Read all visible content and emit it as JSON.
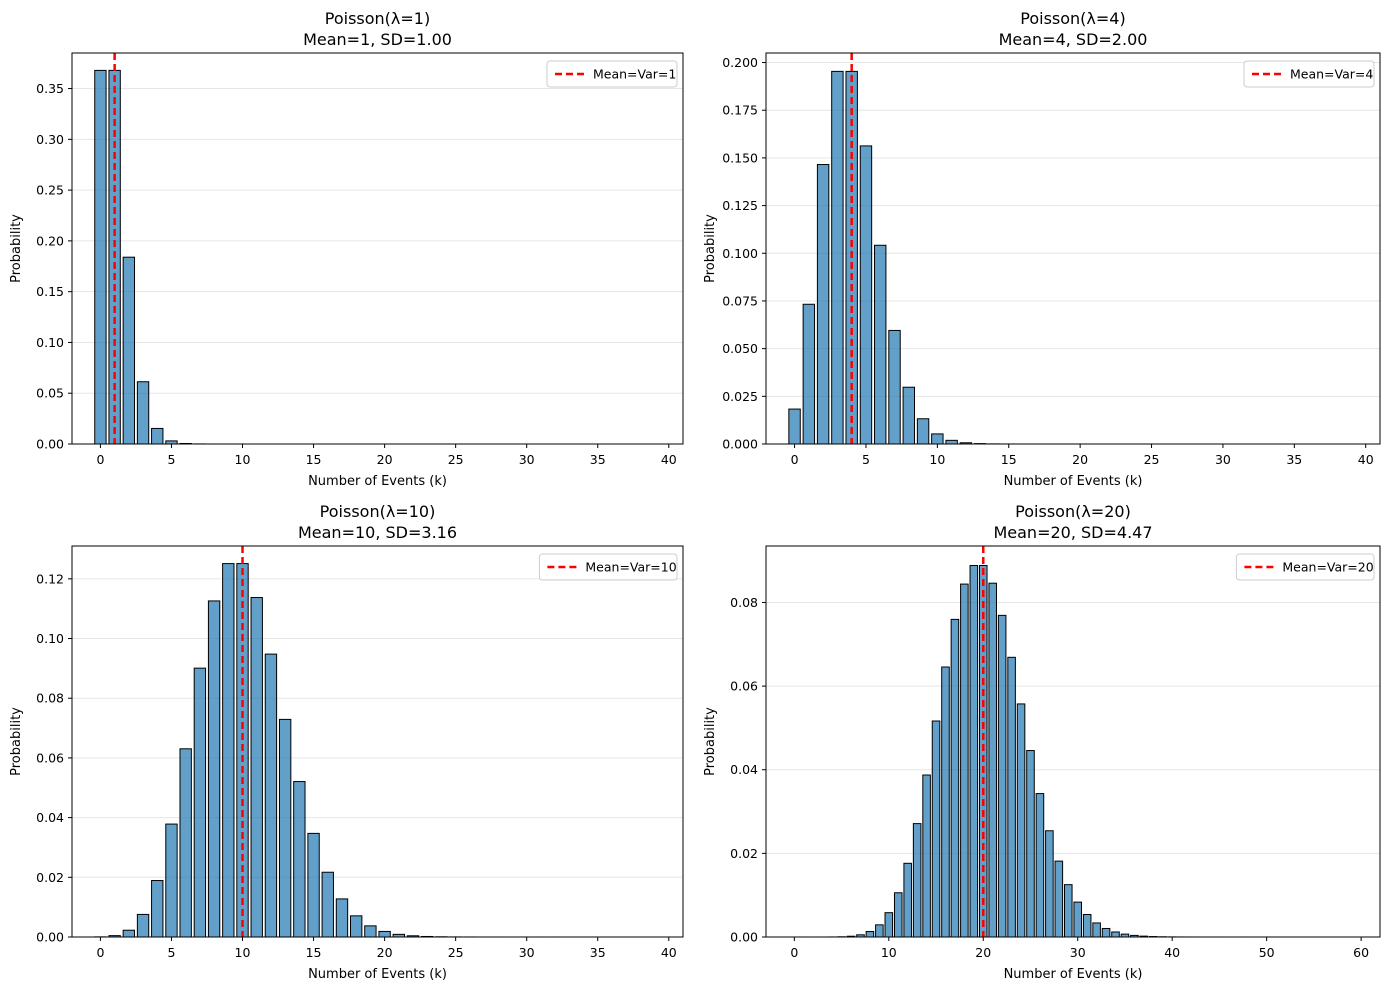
{
  "chart_data": [
    {
      "type": "bar",
      "lambda": 1,
      "title": "Poisson(λ=1)",
      "subtitle": "Mean=1, SD=1.00",
      "xlabel": "Number of Events (k)",
      "ylabel": "Probability",
      "xlim": [
        -2,
        41
      ],
      "ylim": [
        0,
        0.385
      ],
      "xticks": [
        0,
        5,
        10,
        15,
        20,
        25,
        30,
        35,
        40
      ],
      "yticks": [
        0.0,
        0.05,
        0.1,
        0.15,
        0.2,
        0.25,
        0.3,
        0.35
      ],
      "ytick_decimals": 2,
      "k_max": 40,
      "mean_line": 1,
      "legend": "Mean=Var=1",
      "legend_position": "top-right",
      "grid": "y"
    },
    {
      "type": "bar",
      "lambda": 4,
      "title": "Poisson(λ=4)",
      "subtitle": "Mean=4, SD=2.00",
      "xlabel": "Number of Events (k)",
      "ylabel": "Probability",
      "xlim": [
        -2,
        41
      ],
      "ylim": [
        0,
        0.205
      ],
      "xticks": [
        0,
        5,
        10,
        15,
        20,
        25,
        30,
        35,
        40
      ],
      "yticks": [
        0.0,
        0.025,
        0.05,
        0.075,
        0.1,
        0.125,
        0.15,
        0.175,
        0.2
      ],
      "ytick_decimals": 3,
      "k_max": 40,
      "mean_line": 4,
      "legend": "Mean=Var=4",
      "legend_position": "top-right",
      "grid": "y"
    },
    {
      "type": "bar",
      "lambda": 10,
      "title": "Poisson(λ=10)",
      "subtitle": "Mean=10, SD=3.16",
      "xlabel": "Number of Events (k)",
      "ylabel": "Probability",
      "xlim": [
        -2,
        41
      ],
      "ylim": [
        0,
        0.131
      ],
      "xticks": [
        0,
        5,
        10,
        15,
        20,
        25,
        30,
        35,
        40
      ],
      "yticks": [
        0.0,
        0.02,
        0.04,
        0.06,
        0.08,
        0.1,
        0.12
      ],
      "ytick_decimals": 2,
      "k_max": 40,
      "mean_line": 10,
      "legend": "Mean=Var=10",
      "legend_position": "top-right",
      "grid": "y"
    },
    {
      "type": "bar",
      "lambda": 20,
      "title": "Poisson(λ=20)",
      "subtitle": "Mean=20, SD=4.47",
      "xlabel": "Number of Events (k)",
      "ylabel": "Probability",
      "xlim": [
        -3,
        62
      ],
      "ylim": [
        0,
        0.0935
      ],
      "xticks": [
        0,
        10,
        20,
        30,
        40,
        50,
        60
      ],
      "yticks": [
        0.0,
        0.02,
        0.04,
        0.06,
        0.08
      ],
      "ytick_decimals": 2,
      "k_max": 60,
      "mean_line": 20,
      "legend": "Mean=Var=20",
      "legend_position": "top-right",
      "grid": "y"
    }
  ],
  "colors": {
    "bar_fill": "#1f77b4",
    "bar_edge": "#000000",
    "mean_line": "#ff0000",
    "grid": "#e6e6e6"
  }
}
